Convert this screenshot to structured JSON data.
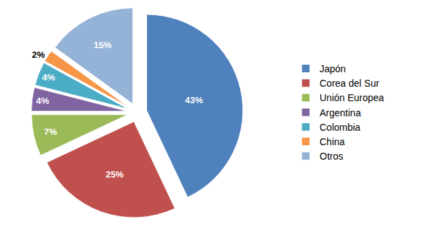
{
  "chart_data": {
    "type": "pie",
    "categories": [
      "Japón",
      "Corea del Sur",
      "Unión Europea",
      "Argentina",
      "Colombia",
      "China",
      "Otros"
    ],
    "values": [
      43,
      25,
      7,
      4,
      4,
      2,
      15
    ],
    "value_labels": [
      "43%",
      "25%",
      "7%",
      "4%",
      "4%",
      "2%",
      "15%"
    ],
    "colors": [
      "#4f81bd",
      "#c0504d",
      "#9bbb59",
      "#8064a2",
      "#4bacc6",
      "#f79646",
      "#95b3d7"
    ],
    "data_labels": true,
    "legend": "right"
  }
}
